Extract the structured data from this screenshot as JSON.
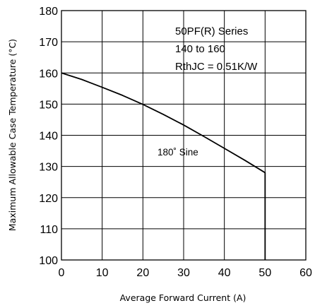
{
  "chart_data": {
    "type": "line",
    "xlabel": "Average Forward Current (A)",
    "ylabel": "Maximum Allowable Case Temperature (°C)",
    "xlim": [
      0,
      60
    ],
    "ylim": [
      100,
      180
    ],
    "x_ticks": [
      "0",
      "10",
      "20",
      "30",
      "40",
      "50",
      "60"
    ],
    "y_ticks": [
      "100",
      "110",
      "120",
      "130",
      "140",
      "150",
      "160",
      "170",
      "180"
    ],
    "grid": true,
    "annotations": {
      "series_title": "50PF(R) Series",
      "range": "140 to 160",
      "rth": "RthJC = 0.51K/W",
      "curve_label": "180˚ Sine"
    },
    "series": [
      {
        "name": "180˚ Sine",
        "x": [
          0,
          5,
          10,
          15,
          20,
          25,
          30,
          35,
          40,
          45,
          50,
          50
        ],
        "y": [
          160,
          157.9,
          155.4,
          152.8,
          149.9,
          146.7,
          143.3,
          139.6,
          135.8,
          132.0,
          128.0,
          100
        ]
      }
    ]
  }
}
